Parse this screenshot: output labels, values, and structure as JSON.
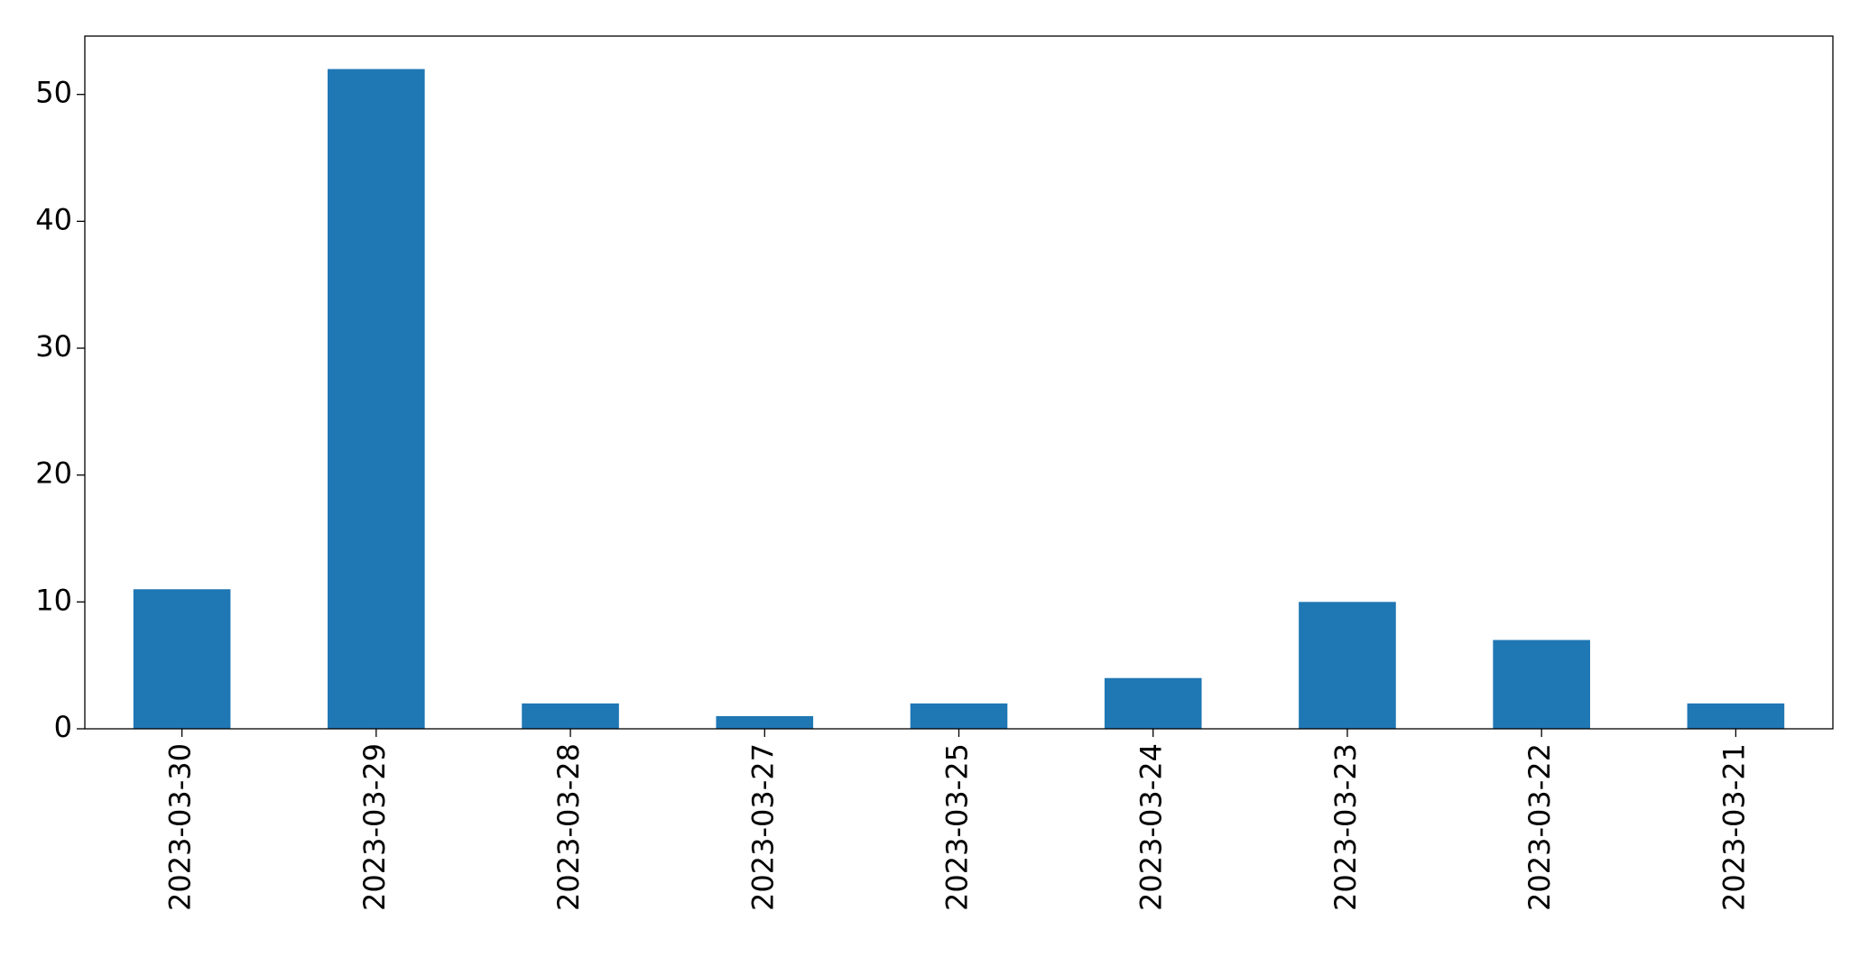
{
  "chart_data": {
    "type": "bar",
    "categories": [
      "2023-03-30",
      "2023-03-29",
      "2023-03-28",
      "2023-03-27",
      "2023-03-25",
      "2023-03-24",
      "2023-03-23",
      "2023-03-22",
      "2023-03-21"
    ],
    "values": [
      11,
      52,
      2,
      1,
      2,
      4,
      10,
      7,
      2
    ],
    "color": "#1f77b4",
    "ylim": [
      0,
      54.6
    ],
    "yticks": [
      0,
      10,
      20,
      30,
      40,
      50
    ],
    "grid": false
  }
}
